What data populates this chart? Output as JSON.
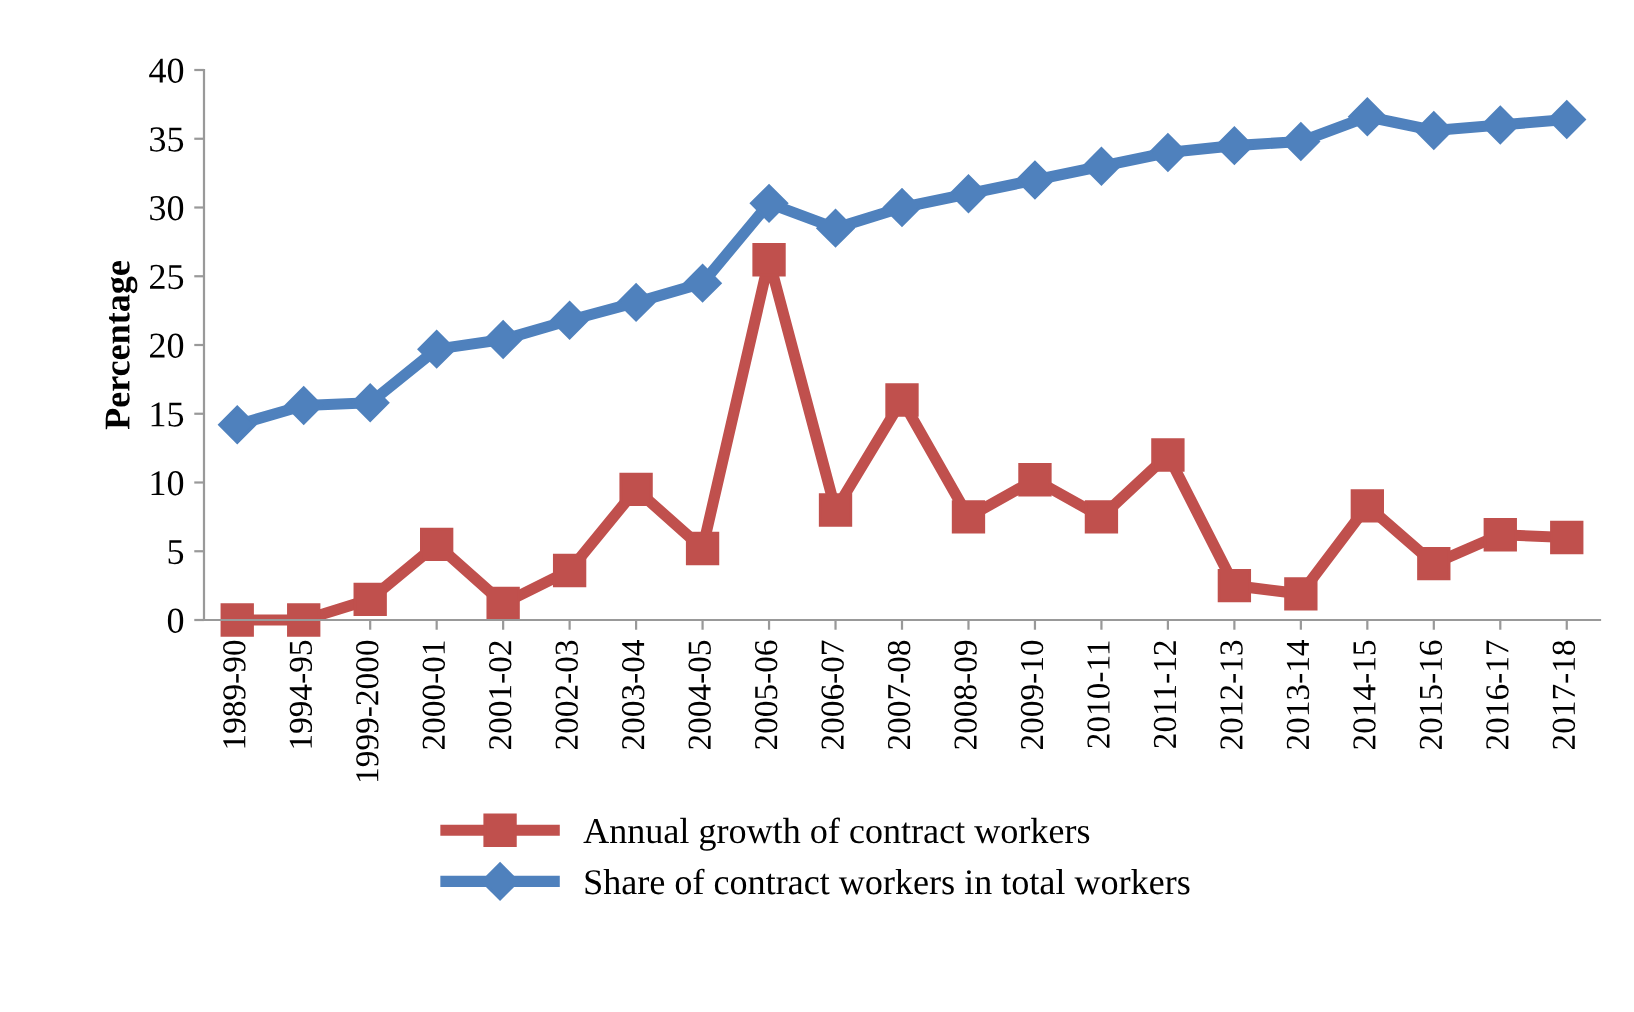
{
  "chart_data": {
    "type": "line",
    "ylabel": "Percentage",
    "categories": [
      "1989-90",
      "1994-95",
      "1999-2000",
      "2000-01",
      "2001-02",
      "2002-03",
      "2003-04",
      "2004-05",
      "2005-06",
      "2006-07",
      "2007-08",
      "2008-09",
      "2009-10",
      "2010-11",
      "2011-12",
      "2012-13",
      "2013-14",
      "2014-15",
      "2015-16",
      "2016-17",
      "2017-18"
    ],
    "series": [
      {
        "name": "Annual growth of contract workers",
        "color": "#c0504d",
        "marker": "square",
        "values": [
          0,
          0,
          1.5,
          5.5,
          1.2,
          3.6,
          9.5,
          5.2,
          26.2,
          8,
          16,
          7.5,
          10.2,
          7.5,
          12,
          2.5,
          1.9,
          8.3,
          4.1,
          6.2,
          6.0
        ]
      },
      {
        "name": "Share of contract workers in total workers",
        "color": "#4f81bd",
        "marker": "diamond",
        "values": [
          14.2,
          15.6,
          15.8,
          19.7,
          20.4,
          21.8,
          23.1,
          24.5,
          30.3,
          28.5,
          30,
          31,
          32,
          33,
          34,
          34.5,
          34.8,
          36.6,
          35.6,
          36,
          36.4
        ]
      }
    ],
    "ylim": [
      0,
      40
    ],
    "yticks": [
      0,
      5,
      10,
      15,
      20,
      25,
      30,
      35,
      40
    ],
    "grid": false,
    "legend": "bottom",
    "line_style": "solid"
  }
}
